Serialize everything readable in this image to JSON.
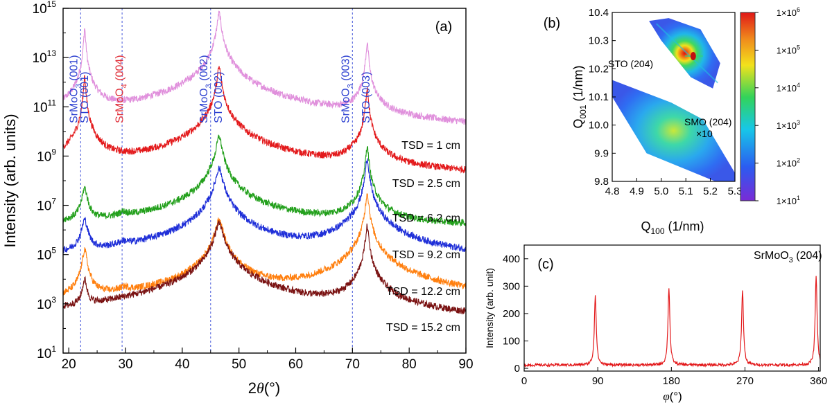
{
  "chart_data": [
    {
      "panel": "(a)",
      "type": "line",
      "xlabel_prefix": "2",
      "xlabel_symbol": "θ",
      "xlabel_unit": "(°)",
      "ylabel": "Intensity (arb. units)",
      "xlim": [
        19,
        90
      ],
      "ylim_log10": [
        1,
        15
      ],
      "yscale": "log",
      "x_ticks": [
        20,
        30,
        40,
        50,
        60,
        70,
        80,
        90
      ],
      "y_tick_exponents": [
        1,
        3,
        5,
        7,
        9,
        11,
        13,
        15
      ],
      "y_tick_base": "10",
      "reference_lines_x": [
        22.1,
        29.4,
        45.0,
        70.0
      ],
      "peak_labels": [
        {
          "base": "SrMoO",
          "sub": "3",
          "rest": " (001)",
          "color": "#2b3fd0",
          "x": 21.5
        },
        {
          "base": "STO (001)",
          "sub": "",
          "rest": "",
          "color": "#2b3fd0",
          "x": 23.4
        },
        {
          "base": "SrMoO",
          "sub": "4",
          "rest": " (004)",
          "color": "#e0303a",
          "x": 29.6
        },
        {
          "base": "SrMoO",
          "sub": "3",
          "rest": " (002)",
          "color": "#2b3fd0",
          "x": 44.4
        },
        {
          "base": "STO (002)",
          "sub": "",
          "rest": "",
          "color": "#2b3fd0",
          "x": 47.0
        },
        {
          "base": "SrMoO",
          "sub": "3",
          "rest": " (003)",
          "color": "#2b3fd0",
          "x": 69.4
        },
        {
          "base": "STO (003)",
          "sub": "",
          "rest": "",
          "color": "#2b3fd0",
          "x": 73.0
        }
      ],
      "series": [
        {
          "name": "TSD = 1 cm",
          "color": "#e090dc",
          "baseline_log10": 8.9,
          "peaks": [
            [
              21.9,
              0.55,
              0.6
            ],
            [
              22.8,
              5.3,
              0.12
            ],
            [
              29.5,
              0.45,
              0.6
            ],
            [
              45.0,
              1.3,
              0.8
            ],
            [
              46.5,
              5.9,
              0.25
            ],
            [
              72.6,
              4.7,
              0.15
            ]
          ]
        },
        {
          "name": "TSD = 2.5 cm",
          "color": "#e31a1c",
          "baseline_log10": 8.0,
          "peaks": [
            [
              22.8,
              4.3,
              0.12
            ],
            [
              44.9,
              1.7,
              0.8
            ],
            [
              46.5,
              4.6,
              0.25
            ],
            [
              69.8,
              0.6,
              0.6
            ],
            [
              72.6,
              3.8,
              0.15
            ]
          ]
        },
        {
          "name": "TSD = 6.2 cm",
          "color": "#23a01c",
          "baseline_log10": 6.1,
          "peaks": [
            [
              22.8,
              1.6,
              0.35
            ],
            [
              29.6,
              0.35,
              0.8
            ],
            [
              45.2,
              1.7,
              0.6
            ],
            [
              46.5,
              3.7,
              0.35
            ],
            [
              72.6,
              3.3,
              0.18
            ]
          ]
        },
        {
          "name": "TSD = 9.2 cm",
          "color": "#1f2fd8",
          "baseline_log10": 4.5,
          "peaks": [
            [
              22.8,
              1.9,
              0.4
            ],
            [
              29.6,
              0.6,
              0.9
            ],
            [
              45.4,
              1.2,
              0.9
            ],
            [
              46.5,
              4.0,
              0.45
            ],
            [
              72.6,
              4.4,
              0.2
            ]
          ]
        },
        {
          "name": "TSD = 12.2 cm",
          "color": "#ff7f0e",
          "baseline_log10": 2.8,
          "peaks": [
            [
              22.8,
              2.4,
              0.3
            ],
            [
              29.8,
              0.5,
              0.9
            ],
            [
              45.4,
              1.0,
              0.9
            ],
            [
              46.5,
              3.6,
              0.5
            ],
            [
              61.0,
              0.2,
              1.5
            ],
            [
              72.6,
              4.7,
              0.2
            ]
          ]
        },
        {
          "name": "TSD = 15.2 cm",
          "color": "#7a1212",
          "baseline_log10": 1.55,
          "peaks": [
            [
              22.8,
              2.4,
              0.3
            ],
            [
              29.6,
              0.35,
              0.8
            ],
            [
              45.4,
              1.4,
              0.9
            ],
            [
              46.5,
              4.7,
              0.55
            ],
            [
              72.6,
              4.6,
              0.2
            ]
          ]
        }
      ]
    },
    {
      "panel": "(b)",
      "type": "heatmap",
      "xlabel_base": "Q",
      "xlabel_sub": "100",
      "xlabel_unit": " (1/nm)",
      "ylabel_base": "Q",
      "ylabel_sub": "001",
      "ylabel_unit": " (1/nm)",
      "xlim": [
        4.8,
        5.3
      ],
      "ylim": [
        9.8,
        10.4
      ],
      "x_ticks": [
        4.8,
        4.9,
        5.0,
        5.1,
        5.2,
        5.3
      ],
      "y_ticks": [
        9.8,
        9.9,
        10.0,
        10.1,
        10.2,
        10.3,
        10.4
      ],
      "colorbar_tick_exponents": [
        1,
        2,
        3,
        4,
        5,
        6
      ],
      "colorbar_tick_prefix": "1×10",
      "annotations": [
        "STO (204)",
        "SMO (204)",
        "×10"
      ],
      "peaks": [
        {
          "label": "STO (204)",
          "q100": 5.13,
          "q001": 10.245
        },
        {
          "label": "SMO (204)",
          "q100": 5.04,
          "q001": 9.98
        }
      ]
    },
    {
      "panel": "(c)",
      "type": "line",
      "annotation_base": "SrMoO",
      "annotation_sub": "3",
      "annotation_rest": " (204)",
      "xlabel_symbol": "φ",
      "xlabel_unit": "(°)",
      "ylabel": "Intensity (arb. unit)",
      "xlim": [
        0,
        362
      ],
      "ylim": [
        -10,
        450
      ],
      "x_ticks": [
        0,
        90,
        180,
        270,
        360
      ],
      "y_ticks": [
        0,
        100,
        200,
        300,
        400
      ],
      "baseline": 12,
      "color": "#e31a1c",
      "peaks": [
        [
          87,
          268
        ],
        [
          177,
          293
        ],
        [
          267,
          288
        ],
        [
          357,
          334
        ]
      ]
    }
  ],
  "colors": {
    "ref_line": "#5566dd",
    "colorbar_stops": [
      "#7a2bd6",
      "#2b5cf0",
      "#17c7e8",
      "#32d35a",
      "#f2e21c",
      "#f08a1c",
      "#e01818"
    ]
  }
}
